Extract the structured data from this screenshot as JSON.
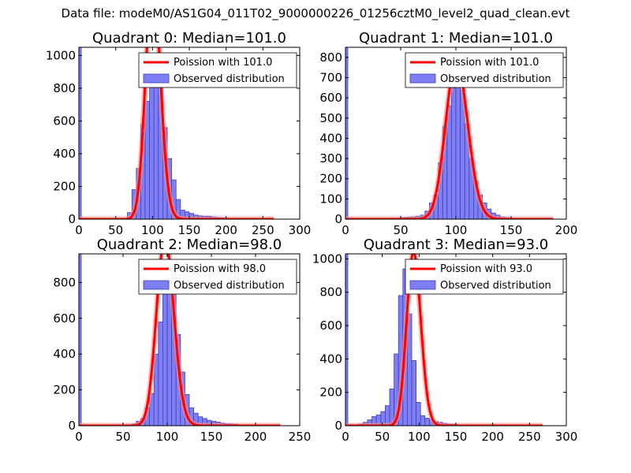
{
  "suptitle": "Data file: modeM0/AS1G04_011T02_9000000226_01256cztM0_level2_quad_clean.evt",
  "colors": {
    "bar_fill": "#7f7ff5",
    "bar_edge": "#4040b8",
    "curve": "#ff0000",
    "curve_halo": "#ff8a8a"
  },
  "chart_data": [
    {
      "type": "bar",
      "title": "Quadrant 0: Median=101.0",
      "median": 101.0,
      "xlim": [
        0,
        300
      ],
      "ylim": [
        0,
        1050
      ],
      "xticks": [
        0,
        50,
        100,
        150,
        200,
        250,
        300
      ],
      "yticks": [
        0,
        200,
        400,
        600,
        800,
        1000
      ],
      "bin_width": 6,
      "bins_start": 60,
      "counts": [
        5,
        40,
        180,
        310,
        580,
        720,
        850,
        1000,
        880,
        560,
        370,
        240,
        120,
        55,
        45,
        35,
        25,
        20,
        18,
        18,
        15,
        10,
        8,
        5,
        4,
        3,
        2
      ],
      "spike": {
        "x": 0,
        "value": 1050
      },
      "curve_x": [
        0,
        265
      ],
      "legend": [
        "Poission with 101.0",
        "Observed distribution"
      ]
    },
    {
      "type": "bar",
      "title": "Quadrant 1: Median=101.0",
      "median": 101.0,
      "xlim": [
        0,
        200
      ],
      "ylim": [
        0,
        850
      ],
      "xticks": [
        0,
        50,
        100,
        150,
        200
      ],
      "yticks": [
        0,
        100,
        200,
        300,
        400,
        500,
        600,
        700,
        800
      ],
      "bin_width": 4,
      "bins_start": 40,
      "counts": [
        2,
        4,
        6,
        8,
        10,
        12,
        15,
        20,
        40,
        80,
        120,
        280,
        460,
        560,
        650,
        720,
        640,
        470,
        300,
        190,
        120,
        80,
        50,
        30,
        20,
        12,
        8,
        5
      ],
      "spike": {
        "x": 0,
        "value": 850
      },
      "curve_x": [
        0,
        188
      ],
      "legend": [
        "Poission with 101.0",
        "Observed distribution"
      ]
    },
    {
      "type": "bar",
      "title": "Quadrant 2: Median=98.0",
      "median": 98.0,
      "xlim": [
        0,
        250
      ],
      "ylim": [
        0,
        960
      ],
      "xticks": [
        0,
        50,
        100,
        150,
        200,
        250
      ],
      "yticks": [
        0,
        200,
        400,
        600,
        800
      ],
      "bin_width": 5,
      "bins_start": 60,
      "counts": [
        10,
        25,
        40,
        100,
        180,
        400,
        580,
        770,
        920,
        780,
        510,
        300,
        175,
        100,
        70,
        50,
        40,
        30,
        25,
        20,
        15,
        12,
        10,
        8,
        5,
        3
      ],
      "spike": {
        "x": 0,
        "value": 960
      },
      "curve_x": [
        0,
        228
      ],
      "legend": [
        "Poission with 98.0",
        "Observed distribution"
      ]
    },
    {
      "type": "bar",
      "title": "Quadrant 3: Median=93.0",
      "median": 93.0,
      "xlim": [
        0,
        300
      ],
      "ylim": [
        0,
        1030
      ],
      "xticks": [
        0,
        50,
        100,
        150,
        200,
        250,
        300
      ],
      "yticks": [
        0,
        200,
        400,
        600,
        800,
        1000
      ],
      "bin_width": 6,
      "bins_start": 18,
      "counts": [
        10,
        20,
        35,
        55,
        65,
        85,
        120,
        220,
        430,
        780,
        940,
        670,
        390,
        140,
        60,
        45,
        35,
        25,
        20,
        15,
        10,
        8,
        5,
        4,
        3
      ],
      "spike": {
        "x": 0,
        "value": 1030
      },
      "curve_x": [
        0,
        268
      ],
      "legend": [
        "Poission with 93.0",
        "Observed distribution"
      ]
    }
  ]
}
